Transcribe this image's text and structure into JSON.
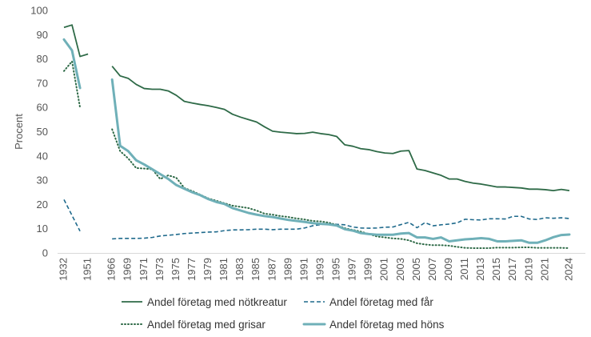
{
  "chart_data": {
    "type": "line",
    "title": "",
    "xlabel": "",
    "ylabel": "Procent",
    "ylim": [
      0,
      100
    ],
    "yticks": [
      0,
      10,
      20,
      30,
      40,
      50,
      60,
      70,
      80,
      90,
      100
    ],
    "grid": false,
    "legend_position": "bottom",
    "categories": [
      "1932",
      "1937",
      "1944",
      "1951",
      "1956",
      "1961",
      "1966",
      "1967",
      "1969",
      "1970",
      "1971",
      "1972",
      "1973",
      "1974",
      "1975",
      "1976",
      "1977",
      "1978",
      "1979",
      "1980",
      "1981",
      "1982",
      "1983",
      "1984",
      "1985",
      "1986",
      "1987",
      "1988",
      "1989",
      "1990",
      "1991",
      "1992",
      "1993",
      "1994",
      "1995",
      "1996",
      "1997",
      "1998",
      "1999",
      "2000",
      "2001",
      "2002",
      "2003",
      "2004",
      "2005",
      "2006",
      "2007",
      "2008",
      "2009",
      "2010",
      "2011",
      "2012",
      "2013",
      "2014",
      "2015",
      "2016",
      "2017",
      "2018",
      "2019",
      "2020",
      "2021",
      "2022",
      "2023",
      "2024",
      "2025"
    ],
    "tick_labels": [
      "1932",
      "1951",
      "1966",
      "1969",
      "1971",
      "1973",
      "1975",
      "1977",
      "1979",
      "1981",
      "1983",
      "1985",
      "1987",
      "1989",
      "1991",
      "1993",
      "1995",
      "1997",
      "1999",
      "2001",
      "2003",
      "2005",
      "2007",
      "2009",
      "2011",
      "2013",
      "2015",
      "2017",
      "2019",
      "2021",
      "2024"
    ],
    "series": [
      {
        "name": "Andel företag med nötkreatur",
        "color": "#2e6a47",
        "style": "solid",
        "values": [
          93,
          94,
          81,
          82,
          null,
          null,
          77,
          73,
          72,
          69.5,
          67.8,
          67.5,
          67.5,
          66.8,
          65,
          62.5,
          61.8,
          61.2,
          60.7,
          60,
          59.2,
          57.2,
          56,
          55,
          54,
          52,
          50.2,
          49.8,
          49.5,
          49.2,
          49.3,
          49.8,
          49.2,
          48.8,
          48,
          44.6,
          44,
          43,
          42.6,
          41.8,
          41.2,
          41,
          42,
          42.2,
          34.6,
          34,
          33,
          32,
          30.5,
          30.5,
          29.5,
          28.8,
          28.4,
          27.8,
          27.2,
          27.2,
          27,
          26.8,
          26.3,
          26.3,
          26.1,
          25.7,
          26.2,
          25.7,
          null
        ]
      },
      {
        "name": "Andel företag med får",
        "color": "#1f6a8c",
        "style": "dashed",
        "values": [
          22,
          15.5,
          9,
          null,
          null,
          null,
          5.8,
          6,
          6,
          6,
          6.1,
          6.4,
          7,
          7.3,
          7.6,
          8,
          8.2,
          8.4,
          8.6,
          8.7,
          9.2,
          9.5,
          9.5,
          9.6,
          9.8,
          9.8,
          9.6,
          9.8,
          9.8,
          9.8,
          10.3,
          11.2,
          11.7,
          12,
          11.8,
          11.6,
          10.7,
          10.3,
          10.2,
          10.3,
          10.6,
          10.7,
          11.7,
          12.6,
          10.4,
          12.5,
          11.2,
          11.6,
          11.9,
          12.4,
          13.9,
          13.7,
          13.6,
          14.1,
          14.1,
          14,
          15.1,
          15.1,
          14,
          13.8,
          14.5,
          14.3,
          14.5,
          14.2,
          null
        ]
      },
      {
        "name": "Andel företag med grisar",
        "color": "#2e6a47",
        "style": "dotted",
        "values": [
          75,
          79,
          60,
          null,
          null,
          null,
          51,
          42,
          39,
          35,
          34.8,
          34.5,
          30.5,
          32,
          31,
          26.8,
          25.5,
          24,
          22.5,
          21.5,
          20.5,
          19.5,
          19,
          18.5,
          17.5,
          16.2,
          15.8,
          15.2,
          14.8,
          14.2,
          13.8,
          13.2,
          13,
          12.5,
          11.5,
          10.2,
          9.5,
          8.8,
          7.8,
          6.8,
          6.4,
          6,
          5.8,
          5.2,
          4,
          3.5,
          3.2,
          3.2,
          3,
          2.5,
          2.1,
          2,
          2,
          2,
          2.2,
          2.2,
          2.2,
          2.3,
          2.3,
          2.1,
          2.1,
          2.1,
          2.1,
          2,
          null
        ]
      },
      {
        "name": "Andel företag med höns",
        "color": "#6fb0b8",
        "style": "thick",
        "values": [
          88,
          83.5,
          68,
          null,
          null,
          null,
          71.5,
          44.2,
          42,
          38.2,
          36.5,
          34.5,
          32.5,
          30.5,
          28,
          26.5,
          25,
          23.8,
          22.2,
          21,
          20.2,
          18.5,
          17.5,
          16.5,
          15.8,
          15.2,
          14.8,
          14.2,
          13.6,
          13.2,
          12.8,
          12.3,
          12,
          11.8,
          11.3,
          9.8,
          9.2,
          8.2,
          7.8,
          7.5,
          7.5,
          7.5,
          8,
          8.2,
          6.4,
          6.4,
          5.8,
          6.4,
          4.8,
          5.2,
          5.6,
          5.8,
          6.1,
          5.8,
          4.8,
          4.8,
          5,
          5.2,
          4.2,
          4.2,
          5.2,
          6.5,
          7.4,
          7.6,
          null
        ]
      }
    ]
  }
}
